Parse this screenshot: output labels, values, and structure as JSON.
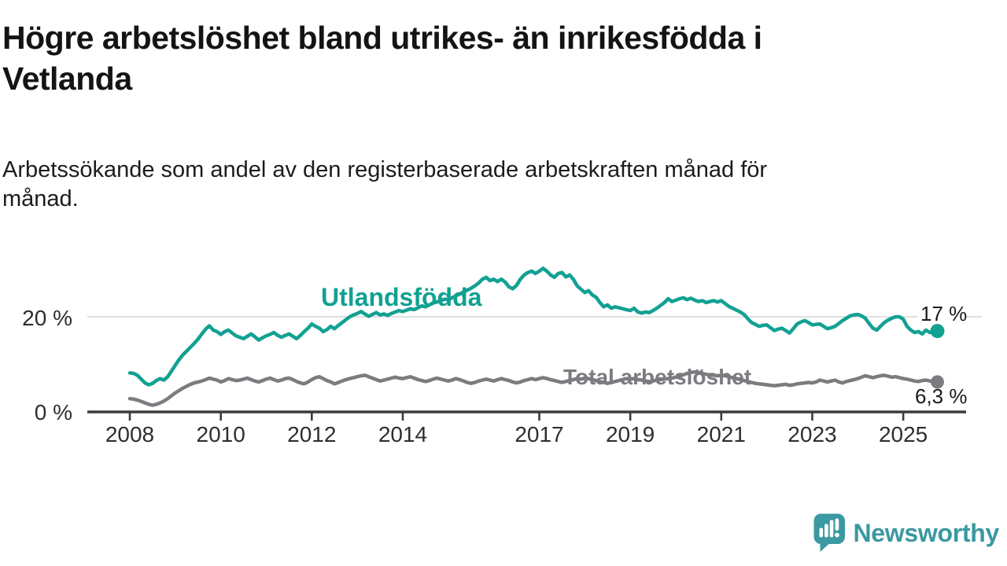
{
  "title": {
    "lines": [
      "Högre arbetslöshet bland utrikes- än inrikesfödda i",
      "Vetlanda"
    ]
  },
  "subtitle": {
    "lines": [
      "Arbetssökande som andel av den registerbaserade arbetskraften månad för",
      "månad."
    ]
  },
  "branding": {
    "name": "Newsworthy",
    "color": "#3a98a1",
    "icon": "speech-bubble-bar-chart"
  },
  "chart_data": {
    "type": "line",
    "x_unit": "month",
    "x_start": "2008-01",
    "x_end": "2025-10",
    "x_ticks": [
      2008,
      2010,
      2012,
      2014,
      2017,
      2019,
      2021,
      2023,
      2025
    ],
    "y_axis_labels": [
      {
        "value": 20,
        "label": "20 %"
      },
      {
        "value": 0,
        "label": "0 %"
      }
    ],
    "ylim": [
      0,
      32
    ],
    "gridline_value": 20,
    "grid": "horizontal-20-only",
    "legend_position": "inline-labels",
    "series": [
      {
        "name": "Utlandsfödda",
        "color": "#12a192",
        "end_label": "17 %",
        "values": [
          8.2,
          8.1,
          7.7,
          6.9,
          6.1,
          5.7,
          6.0,
          6.6,
          7.0,
          6.7,
          7.4,
          8.6,
          9.8,
          11.0,
          12.0,
          12.8,
          13.6,
          14.4,
          15.3,
          16.4,
          17.4,
          18.1,
          17.2,
          16.9,
          16.3,
          16.9,
          17.2,
          16.6,
          16.0,
          15.7,
          15.4,
          15.9,
          16.4,
          15.8,
          15.1,
          15.6,
          16.0,
          16.3,
          16.7,
          16.1,
          15.7,
          16.1,
          16.4,
          15.9,
          15.4,
          16.1,
          16.9,
          17.6,
          18.5,
          18.0,
          17.6,
          16.9,
          17.3,
          18.0,
          17.5,
          18.2,
          18.8,
          19.4,
          20.0,
          20.4,
          20.7,
          21.1,
          20.6,
          20.1,
          20.5,
          20.9,
          20.4,
          20.6,
          20.3,
          20.7,
          21.0,
          21.3,
          21.1,
          21.4,
          21.7,
          21.5,
          21.9,
          22.3,
          22.1,
          22.5,
          22.9,
          23.1,
          23.4,
          23.7,
          23.6,
          24.0,
          24.4,
          24.8,
          25.2,
          25.6,
          26.0,
          26.5,
          27.1,
          27.9,
          28.3,
          27.6,
          27.9,
          27.4,
          27.9,
          27.3,
          26.3,
          25.9,
          26.6,
          27.9,
          28.8,
          29.3,
          29.6,
          29.1,
          29.6,
          30.2,
          29.6,
          28.8,
          28.3,
          29.1,
          29.3,
          28.4,
          28.8,
          27.9,
          26.5,
          25.8,
          25.1,
          25.5,
          24.6,
          24.1,
          23.0,
          22.1,
          22.5,
          21.8,
          22.1,
          21.9,
          21.7,
          21.5,
          21.3,
          21.8,
          21.0,
          20.8,
          21.0,
          20.9,
          21.3,
          21.8,
          22.4,
          23.0,
          23.8,
          23.2,
          23.5,
          23.8,
          24.0,
          23.6,
          23.9,
          23.5,
          23.2,
          23.4,
          23.0,
          23.2,
          23.4,
          23.1,
          23.4,
          22.8,
          22.2,
          21.8,
          21.4,
          21.0,
          20.5,
          19.6,
          18.8,
          18.4,
          18.0,
          18.2,
          18.3,
          17.7,
          17.1,
          17.4,
          17.6,
          17.1,
          16.6,
          17.5,
          18.5,
          18.9,
          19.2,
          18.8,
          18.3,
          18.4,
          18.5,
          18.0,
          17.5,
          17.7,
          18.0,
          18.6,
          19.2,
          19.7,
          20.2,
          20.4,
          20.5,
          20.2,
          19.7,
          18.6,
          17.6,
          17.2,
          18.0,
          18.8,
          19.3,
          19.7,
          20.0,
          20.0,
          19.5,
          18.0,
          17.2,
          16.7,
          16.9,
          16.4,
          17.2,
          16.7,
          16.9,
          17.0
        ]
      },
      {
        "name": "Total arbetslöshet",
        "color": "#7b7b80",
        "end_label": "6,3 %",
        "values": [
          2.8,
          2.7,
          2.5,
          2.2,
          1.9,
          1.6,
          1.4,
          1.6,
          1.9,
          2.3,
          2.8,
          3.4,
          4.0,
          4.5,
          5.0,
          5.4,
          5.8,
          6.1,
          6.3,
          6.5,
          6.8,
          7.1,
          6.9,
          6.7,
          6.3,
          6.6,
          7.0,
          6.8,
          6.6,
          6.7,
          6.9,
          7.1,
          6.8,
          6.5,
          6.3,
          6.6,
          6.9,
          7.1,
          6.8,
          6.5,
          6.7,
          7.0,
          7.1,
          6.8,
          6.4,
          6.1,
          5.9,
          6.3,
          6.8,
          7.2,
          7.4,
          7.0,
          6.6,
          6.3,
          5.9,
          6.2,
          6.5,
          6.8,
          7.0,
          7.2,
          7.4,
          7.6,
          7.7,
          7.4,
          7.1,
          6.8,
          6.5,
          6.7,
          6.9,
          7.1,
          7.3,
          7.1,
          7.0,
          7.2,
          7.4,
          7.1,
          6.8,
          6.6,
          6.4,
          6.6,
          6.9,
          7.1,
          6.9,
          6.7,
          6.5,
          6.7,
          7.0,
          6.8,
          6.5,
          6.2,
          6.0,
          6.2,
          6.5,
          6.7,
          6.9,
          6.7,
          6.5,
          6.8,
          7.0,
          6.8,
          6.6,
          6.3,
          6.1,
          6.3,
          6.6,
          6.8,
          7.0,
          6.8,
          7.0,
          7.2,
          7.0,
          6.8,
          6.6,
          6.4,
          6.2,
          6.4,
          6.6,
          6.8,
          7.0,
          6.9,
          7.1,
          7.0,
          6.8,
          6.6,
          6.4,
          6.2,
          6.0,
          6.2,
          6.4,
          6.6,
          6.8,
          7.0,
          6.9,
          7.0,
          6.8,
          6.7,
          6.5,
          6.4,
          6.5,
          6.7,
          6.8,
          6.9,
          7.0,
          7.1,
          7.3,
          7.5,
          7.8,
          8.1,
          8.3,
          8.4,
          8.3,
          8.1,
          7.9,
          7.8,
          7.7,
          7.6,
          7.7,
          7.6,
          7.4,
          7.2,
          7.0,
          6.8,
          6.6,
          6.4,
          6.2,
          6.0,
          5.9,
          5.8,
          5.7,
          5.6,
          5.5,
          5.6,
          5.7,
          5.8,
          5.6,
          5.7,
          5.9,
          6.0,
          6.1,
          6.2,
          6.1,
          6.3,
          6.7,
          6.5,
          6.3,
          6.5,
          6.7,
          6.3,
          6.1,
          6.4,
          6.6,
          6.8,
          7.0,
          7.3,
          7.6,
          7.4,
          7.2,
          7.4,
          7.6,
          7.7,
          7.5,
          7.3,
          7.4,
          7.2,
          7.0,
          6.9,
          6.7,
          6.5,
          6.4,
          6.6,
          6.7,
          6.5,
          6.4,
          6.3
        ]
      }
    ]
  }
}
